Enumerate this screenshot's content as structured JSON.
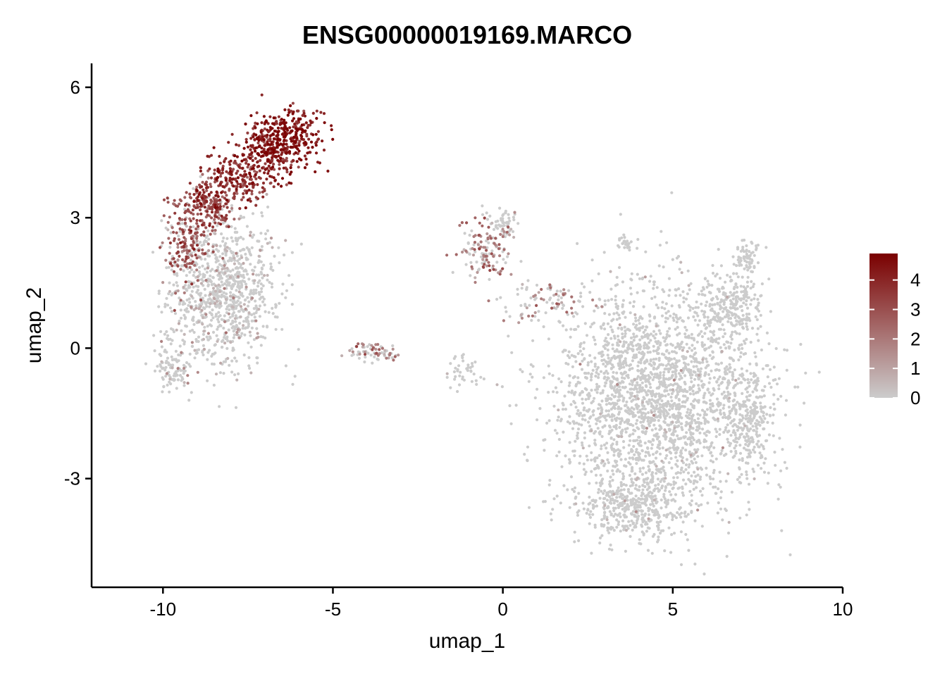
{
  "chart_data": {
    "type": "scatter",
    "title": "ENSG00000019169.MARCO",
    "xlabel": "umap_1",
    "ylabel": "umap_2",
    "xlim": [
      -12.1,
      10
    ],
    "ylim": [
      -5.5,
      6.55
    ],
    "x_ticks": [
      -10,
      -5,
      0,
      5,
      10
    ],
    "x_tick_labels": [
      "-10",
      "-5",
      "0",
      "5",
      "10"
    ],
    "y_ticks": [
      -3,
      0,
      3,
      6
    ],
    "y_tick_labels": [
      "-3",
      "0",
      "3",
      "6"
    ],
    "grid": false,
    "legend": {
      "placement": "right",
      "type": "colorbar",
      "range": [
        0,
        4.9
      ],
      "ticks": [
        0,
        1,
        2,
        3,
        4
      ],
      "tick_labels": [
        "0",
        "1",
        "2",
        "3",
        "4"
      ],
      "low_color": "#CCCCCC",
      "high_color": "#7A0000"
    },
    "colors": {
      "low": "#CCCCCC",
      "high": "#7A0000"
    },
    "clusters": [
      {
        "cx": -8.3,
        "cy": 1.3,
        "sx": 0.95,
        "sy": 1.0,
        "n": 1000,
        "expr": 0.35
      },
      {
        "cx": -9.3,
        "cy": 2.5,
        "sx": 0.4,
        "sy": 0.6,
        "n": 150,
        "expr": 2.5
      },
      {
        "cx": -8.6,
        "cy": 3.3,
        "sx": 0.45,
        "sy": 0.35,
        "n": 180,
        "expr": 3.0
      },
      {
        "cx": -7.8,
        "cy": 3.9,
        "sx": 0.55,
        "sy": 0.3,
        "n": 180,
        "expr": 3.5
      },
      {
        "cx": -6.8,
        "cy": 4.5,
        "sx": 0.65,
        "sy": 0.35,
        "n": 260,
        "expr": 4.0
      },
      {
        "cx": -6.3,
        "cy": 5.0,
        "sx": 0.6,
        "sy": 0.3,
        "n": 200,
        "expr": 4.2
      },
      {
        "cx": -9.7,
        "cy": -0.5,
        "sx": 0.35,
        "sy": 0.3,
        "n": 90,
        "expr": 0.3
      },
      {
        "cx": -3.8,
        "cy": -0.1,
        "sx": 0.5,
        "sy": 0.15,
        "n": 70,
        "expr": 1.2
      },
      {
        "cx": -0.5,
        "cy": 2.3,
        "sx": 0.45,
        "sy": 0.45,
        "n": 140,
        "expr": 1.6
      },
      {
        "cx": 0.0,
        "cy": 2.9,
        "sx": 0.3,
        "sy": 0.2,
        "n": 50,
        "expr": 0.2
      },
      {
        "cx": 1.2,
        "cy": 1.1,
        "sx": 0.8,
        "sy": 0.35,
        "n": 90,
        "expr": 1.2
      },
      {
        "cx": -1.2,
        "cy": -0.5,
        "sx": 0.35,
        "sy": 0.25,
        "n": 40,
        "expr": 0.1
      },
      {
        "cx": 4.4,
        "cy": -1.1,
        "sx": 1.7,
        "sy": 1.45,
        "n": 2300,
        "expr": 0.04
      },
      {
        "cx": 3.9,
        "cy": -3.6,
        "sx": 1.0,
        "sy": 0.45,
        "n": 400,
        "expr": 0.04
      },
      {
        "cx": 7.2,
        "cy": -1.6,
        "sx": 0.55,
        "sy": 0.9,
        "n": 300,
        "expr": 0.05
      },
      {
        "cx": 6.7,
        "cy": 1.0,
        "sx": 0.6,
        "sy": 0.45,
        "n": 250,
        "expr": 0.05
      },
      {
        "cx": 3.6,
        "cy": 2.4,
        "sx": 0.12,
        "sy": 0.08,
        "n": 25,
        "expr": 0.0
      },
      {
        "cx": 7.2,
        "cy": 2.1,
        "sx": 0.2,
        "sy": 0.2,
        "n": 60,
        "expr": 0.0
      }
    ]
  }
}
